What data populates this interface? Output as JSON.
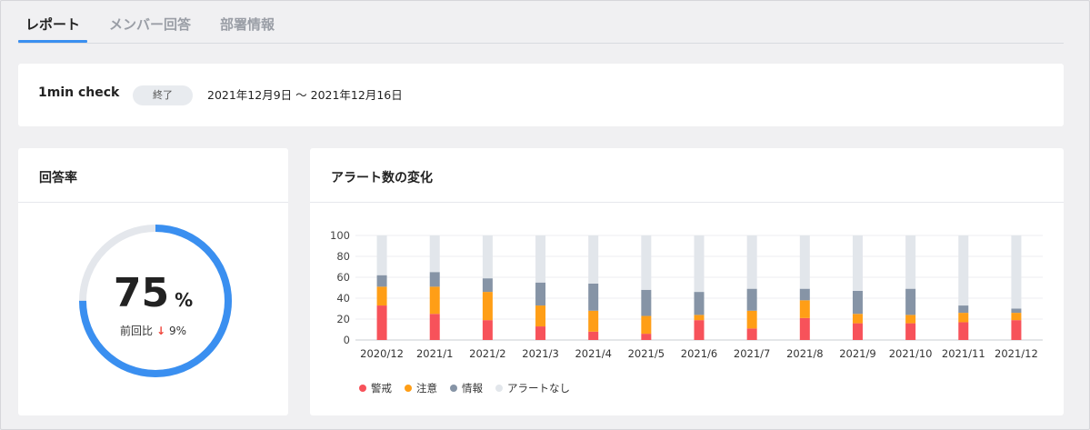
{
  "tabs": [
    {
      "label": "レポート",
      "active": true
    },
    {
      "label": "メンバー回答",
      "active": false
    },
    {
      "label": "部署情報",
      "active": false
    }
  ],
  "survey": {
    "name": "1min check",
    "status": "終了",
    "period": "2021年12月9日 〜 2021年12月16日"
  },
  "response_rate": {
    "title": "回答率",
    "value": "75",
    "unit": "%",
    "value_fraction": 0.75,
    "compare_label": "前回比",
    "compare_arrow": "↓",
    "compare_value": "9%"
  },
  "alerts": {
    "title": "アラート数の変化"
  },
  "colors": {
    "keikai": "#f7525a",
    "chui": "#ff9e16",
    "joho": "#8694a6",
    "none": "#e2e6eb",
    "accent": "#3a8ff0"
  },
  "chart_data": {
    "type": "bar",
    "stacked": true,
    "categories": [
      "2020/12",
      "2021/1",
      "2021/2",
      "2021/3",
      "2021/4",
      "2021/5",
      "2021/6",
      "2021/7",
      "2021/8",
      "2021/9",
      "2021/10",
      "2021/11",
      "2021/12"
    ],
    "series": [
      {
        "name": "警戒",
        "values": [
          33,
          25,
          19,
          13,
          8,
          6,
          19,
          11,
          21,
          16,
          16,
          17,
          19
        ]
      },
      {
        "name": "注意",
        "values": [
          18,
          26,
          27,
          20,
          20,
          17,
          5,
          17,
          17,
          9,
          8,
          9,
          7
        ]
      },
      {
        "name": "情報",
        "values": [
          11,
          14,
          13,
          22,
          26,
          25,
          22,
          21,
          11,
          22,
          25,
          7,
          4
        ]
      },
      {
        "name": "アラートなし",
        "values": [
          38,
          35,
          41,
          45,
          46,
          52,
          54,
          51,
          51,
          53,
          51,
          67,
          70
        ]
      }
    ],
    "y_ticks": [
      0,
      20,
      40,
      60,
      80,
      100
    ],
    "ylim": [
      0,
      100
    ],
    "grid": true,
    "legend_position": "bottom-left"
  }
}
